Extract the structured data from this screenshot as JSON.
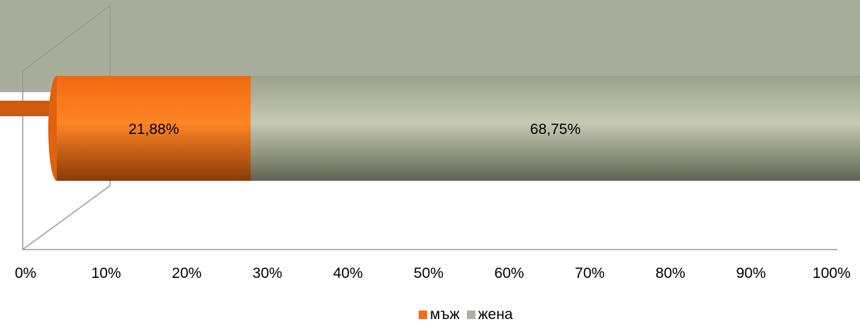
{
  "chart_data": {
    "type": "bar",
    "orientation": "horizontal",
    "stacked": true,
    "percent_stacked": true,
    "style": "3d-cylinder",
    "title": "",
    "xlabel": "",
    "ylabel": "",
    "xlim": [
      0,
      100
    ],
    "x_ticks": [
      "0%",
      "10%",
      "20%",
      "30%",
      "40%",
      "50%",
      "60%",
      "70%",
      "80%",
      "90%",
      "100%"
    ],
    "grid": false,
    "legend_position": "bottom",
    "categories": [
      ""
    ],
    "series": [
      {
        "name": "мъж",
        "values": [
          21.88
        ],
        "label": "21,88%",
        "color": "#f07018"
      },
      {
        "name": "жена",
        "values": [
          68.75
        ],
        "label": "68,75%",
        "color": "#aab29e"
      }
    ],
    "scale_total": 90.63
  }
}
